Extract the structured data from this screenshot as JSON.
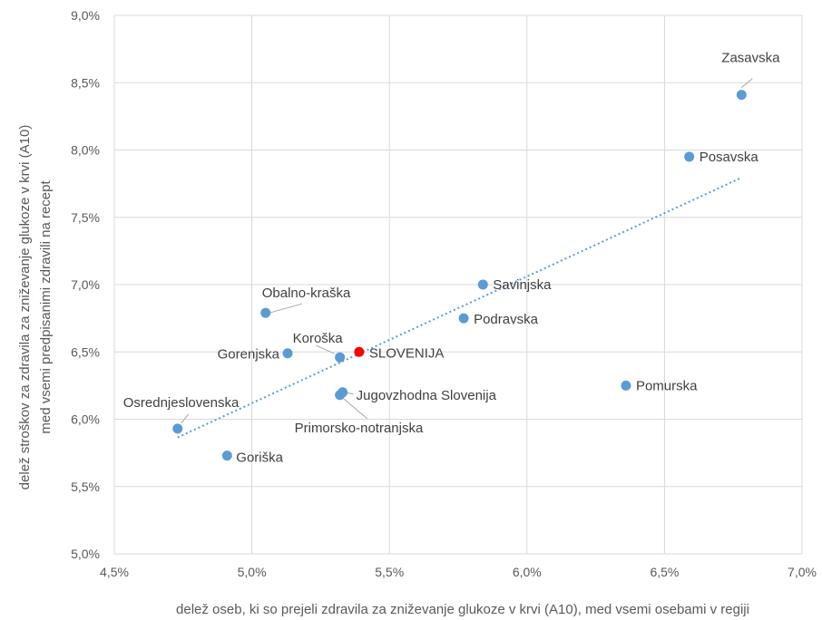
{
  "chart_data": {
    "type": "scatter",
    "xlabel": "delež oseb, ki so prejeli zdravila za zniževanje glukoze v krvi (A10), med vsemi osebami v regiji",
    "ylabel_lines": [
      "delež stroškov za zdravila za zniževanje glukoze v krvi (A10)",
      "med vsemi predpisanimi zdravili na recept"
    ],
    "xlim": [
      4.5,
      7.0
    ],
    "ylim": [
      5.0,
      9.0
    ],
    "x_ticks": [
      4.5,
      5.0,
      5.5,
      6.0,
      6.5,
      7.0
    ],
    "y_ticks": [
      5.0,
      5.5,
      6.0,
      6.5,
      7.0,
      7.5,
      8.0,
      8.5,
      9.0
    ],
    "x_tick_labels": [
      "4,5%",
      "5,0%",
      "5,5%",
      "6,0%",
      "6,5%",
      "7,0%"
    ],
    "y_tick_labels": [
      "5,0%",
      "5,5%",
      "6,0%",
      "6,5%",
      "7,0%",
      "7,5%",
      "8,0%",
      "8,5%",
      "9,0%"
    ],
    "grid": true,
    "point_color": "#5b9bd5",
    "highlight_color": "#ff0000",
    "trendline": {
      "style": "dotted",
      "color": "#5b9bd5",
      "from_x": 4.73,
      "to_x": 6.78
    },
    "points": [
      {
        "label": "Zasavska",
        "x": 6.78,
        "y": 8.41
      },
      {
        "label": "Posavska",
        "x": 6.59,
        "y": 7.95
      },
      {
        "label": "Savinjska",
        "x": 5.84,
        "y": 7.0
      },
      {
        "label": "Podravska",
        "x": 5.77,
        "y": 6.75
      },
      {
        "label": "Obalno-kraška",
        "x": 5.05,
        "y": 6.79
      },
      {
        "label": "Gorenjska",
        "x": 5.13,
        "y": 6.49
      },
      {
        "label": "Koroška",
        "x": 5.32,
        "y": 6.46
      },
      {
        "label": "SLOVENIJA",
        "x": 5.39,
        "y": 6.5,
        "highlight": true
      },
      {
        "label": "Jugovzhodna Slovenija",
        "x": 5.33,
        "y": 6.2
      },
      {
        "label": "Primorsko-notranjska",
        "x": 5.32,
        "y": 6.18
      },
      {
        "label": "Pomurska",
        "x": 6.36,
        "y": 6.25
      },
      {
        "label": "Osrednjeslovenska",
        "x": 4.73,
        "y": 5.93
      },
      {
        "label": "Goriška",
        "x": 4.91,
        "y": 5.73
      }
    ]
  }
}
